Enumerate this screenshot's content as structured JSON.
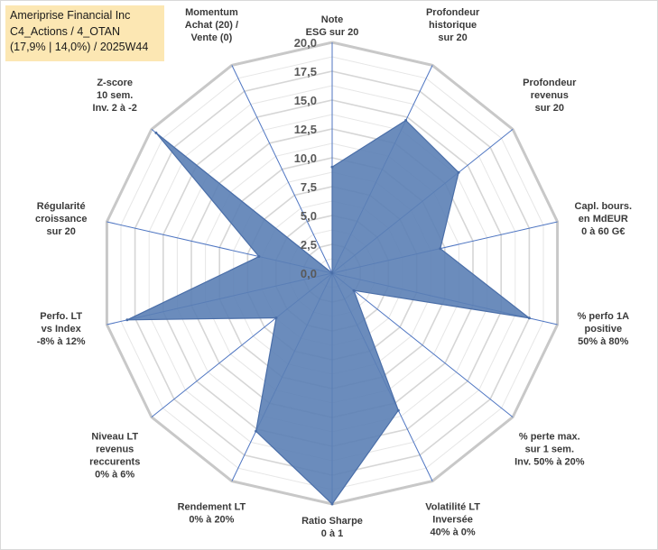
{
  "info": {
    "company": "Ameriprise Financial Inc",
    "portfolio": "C4_Actions / 4_OTAN",
    "stats": "(17,9% | 14,0%) / 2025W44"
  },
  "chart_data": {
    "type": "radar",
    "title": "",
    "rmin": 0,
    "rmax": 20,
    "ticks": [
      "0,0",
      "2,5",
      "5,0",
      "7,5",
      "10,0",
      "12,5",
      "15,0",
      "17,5",
      "20,0"
    ],
    "tick_values": [
      0,
      2.5,
      5,
      7.5,
      10,
      12.5,
      15,
      17.5,
      20
    ],
    "grid": true,
    "axes": [
      {
        "label": [
          "Note",
          "ESG sur 20"
        ]
      },
      {
        "label": [
          "Profondeur",
          "historique",
          "sur 20"
        ]
      },
      {
        "label": [
          "Profondeur",
          "revenus",
          "sur 20"
        ]
      },
      {
        "label": [
          "Capl. bours.",
          "en MdEUR",
          "0 à 60 G€"
        ]
      },
      {
        "label": [
          "% perfo 1A",
          "positive",
          "50% à 80%"
        ]
      },
      {
        "label": [
          "% perte max.",
          "sur 1 sem.",
          "Inv. 50% à 20%"
        ]
      },
      {
        "label": [
          "Volatilité LT",
          "Inversée",
          "40% à 0%"
        ]
      },
      {
        "label": [
          "Ratio Sharpe",
          "0 à 1"
        ]
      },
      {
        "label": [
          "Rendement LT",
          "0% à 20%"
        ]
      },
      {
        "label": [
          "Niveau LT",
          "revenus",
          "reccurents",
          "0% à 6%"
        ]
      },
      {
        "label": [
          "Perfo. LT",
          "vs Index",
          "-8% à 12%"
        ]
      },
      {
        "label": [
          "Régularité",
          "croissance",
          "sur 20"
        ]
      },
      {
        "label": [
          "Z-score",
          "10 sem.",
          "Inv. 2 à -2"
        ]
      },
      {
        "label": [
          "Momentum",
          "Achat (20) /",
          "Vente (0)"
        ]
      }
    ],
    "series": [
      {
        "name": "Ameriprise Financial Inc",
        "color": "#5b7fb5",
        "values": [
          9.2,
          14.7,
          14.0,
          9.6,
          17.5,
          2.4,
          13.2,
          20.0,
          15.2,
          6.2,
          18.2,
          6.5,
          19.5,
          0.0
        ]
      }
    ]
  }
}
